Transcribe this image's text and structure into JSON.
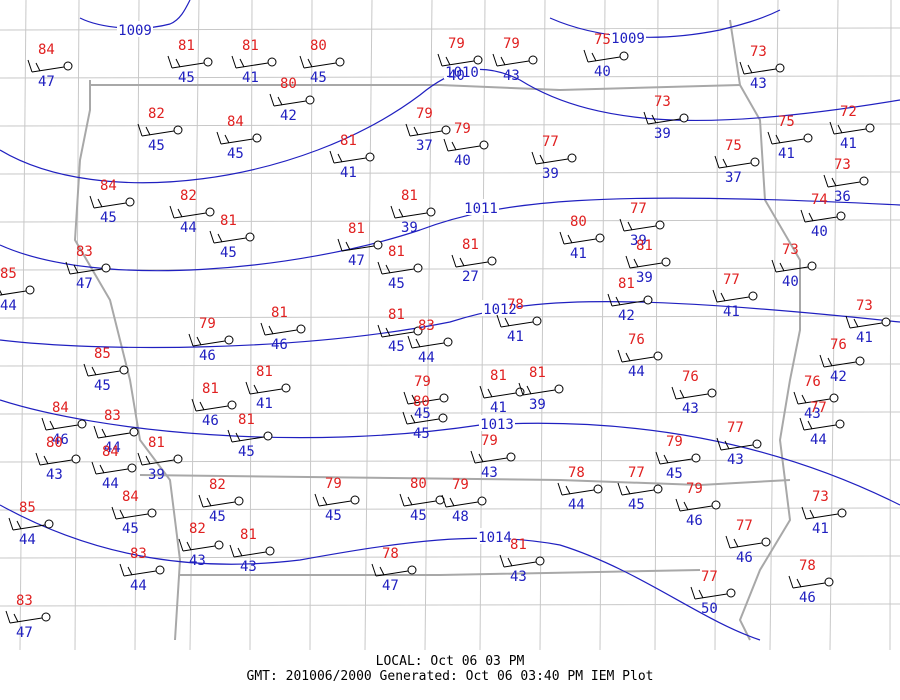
{
  "stations": [
    {
      "temp": 84,
      "dew": 47
    },
    {
      "temp": 81,
      "dew": 45
    },
    {
      "temp": 81,
      "dew": 41
    },
    {
      "temp": 80,
      "dew": 45
    },
    {
      "temp": 79,
      "dew": 40
    },
    {
      "temp": 79,
      "dew": 43
    },
    {
      "temp": 75,
      "dew": 40
    },
    {
      "temp": 73,
      "dew": 43
    },
    {
      "temp": 80,
      "dew": 42
    },
    {
      "temp": 82,
      "dew": 45
    },
    {
      "temp": 84,
      "dew": 45
    },
    {
      "temp": 81,
      "dew": 41
    },
    {
      "temp": 79,
      "dew": 37
    },
    {
      "temp": 79,
      "dew": 40
    },
    {
      "temp": 77,
      "dew": 39
    },
    {
      "temp": 73,
      "dew": 39
    },
    {
      "temp": 75,
      "dew": 37
    },
    {
      "temp": 75,
      "dew": 41
    },
    {
      "temp": 72,
      "dew": 41
    },
    {
      "temp": 73,
      "dew": 36
    },
    {
      "temp": 84,
      "dew": 45
    },
    {
      "temp": 82,
      "dew": 44
    },
    {
      "temp": 81,
      "dew": 45
    },
    {
      "temp": 81,
      "dew": 47
    },
    {
      "temp": 81,
      "dew": 39
    },
    {
      "temp": 81,
      "dew": 27
    },
    {
      "temp": 80,
      "dew": 41
    },
    {
      "temp": 77,
      "dew": 39
    },
    {
      "temp": 81,
      "dew": 39
    },
    {
      "temp": 74,
      "dew": 40
    },
    {
      "temp": 83,
      "dew": 47
    },
    {
      "temp": 85,
      "dew": 44
    },
    {
      "temp": 81,
      "dew": 45
    },
    {
      "temp": 73,
      "dew": 40
    },
    {
      "temp": 77,
      "dew": 41
    },
    {
      "temp": 81,
      "dew": 42
    },
    {
      "temp": 73,
      "dew": 41
    },
    {
      "temp": 78,
      "dew": 41
    },
    {
      "temp": 79,
      "dew": 46
    },
    {
      "temp": 81,
      "dew": 46
    },
    {
      "temp": 81,
      "dew": 45
    },
    {
      "temp": 83,
      "dew": 44
    },
    {
      "temp": 76,
      "dew": 44
    },
    {
      "temp": 76,
      "dew": 42
    },
    {
      "temp": 85,
      "dew": 45
    },
    {
      "temp": 81,
      "dew": 41
    },
    {
      "temp": 81,
      "dew": 46
    },
    {
      "temp": 79,
      "dew": 45
    },
    {
      "temp": 80,
      "dew": 45
    },
    {
      "temp": 81,
      "dew": 41
    },
    {
      "temp": 81,
      "dew": 39
    },
    {
      "temp": 76,
      "dew": 43
    },
    {
      "temp": 76,
      "dew": 43
    },
    {
      "temp": 77,
      "dew": 44
    },
    {
      "temp": 84,
      "dew": 46
    },
    {
      "temp": 83,
      "dew": 44
    },
    {
      "temp": 80,
      "dew": 43
    },
    {
      "temp": 84,
      "dew": 44
    },
    {
      "temp": 81,
      "dew": 39
    },
    {
      "temp": 81,
      "dew": 45
    },
    {
      "temp": 79,
      "dew": 43
    },
    {
      "temp": 79,
      "dew": 45
    },
    {
      "temp": 77,
      "dew": 43
    },
    {
      "temp": 78,
      "dew": 44
    },
    {
      "temp": 82,
      "dew": 45
    },
    {
      "temp": 79,
      "dew": 45
    },
    {
      "temp": 80,
      "dew": 45
    },
    {
      "temp": 79,
      "dew": 48
    },
    {
      "temp": 77,
      "dew": 45
    },
    {
      "temp": 79,
      "dew": 46
    },
    {
      "temp": 73,
      "dew": 41
    },
    {
      "temp": 84,
      "dew": 45
    },
    {
      "temp": 85,
      "dew": 44
    },
    {
      "temp": 82,
      "dew": 43
    },
    {
      "temp": 81,
      "dew": 43
    },
    {
      "temp": 77,
      "dew": 46
    },
    {
      "temp": 81,
      "dew": 43
    },
    {
      "temp": 83,
      "dew": 44
    },
    {
      "temp": 78,
      "dew": 47
    },
    {
      "temp": 77,
      "dew": 50
    },
    {
      "temp": 78,
      "dew": 46
    },
    {
      "temp": 83,
      "dew": 47
    }
  ],
  "isobars": [
    {
      "label": 1009
    },
    {
      "label": 1009
    },
    {
      "label": 1010
    },
    {
      "label": 1011
    },
    {
      "label": 1012
    },
    {
      "label": 1013
    },
    {
      "label": 1014
    }
  ],
  "footer": {
    "local": "LOCAL: Oct 06 03 PM",
    "gmt": "GMT: 201006/2000 Generated: Oct 06 03:40 PM IEM Plot"
  }
}
